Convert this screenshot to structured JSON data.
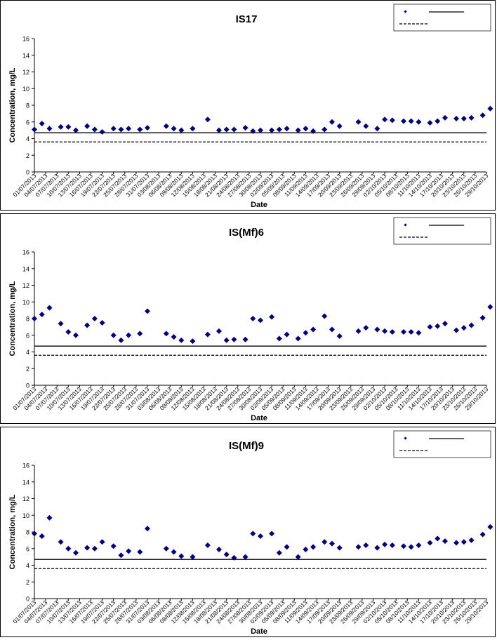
{
  "chart_data": [
    {
      "type": "scatter",
      "title": "IS17",
      "xlabel": "Date",
      "ylabel": "Concentration, mg/L",
      "ylim": [
        0,
        16
      ],
      "yticks": [
        "0",
        "2",
        "4",
        "6",
        "8",
        "10",
        "12",
        "14",
        "16"
      ],
      "x_tick_labels": [
        "01/07/2013",
        "04/07/2013",
        "07/07/2013",
        "10/07/2013",
        "13/07/2013",
        "16/07/2013",
        "19/07/2013",
        "22/07/2013",
        "25/07/2013",
        "28/07/2013",
        "31/07/2013",
        "03/08/2013",
        "06/08/2013",
        "09/08/2013",
        "12/08/2013",
        "15/08/2013",
        "18/08/2013",
        "21/08/2013",
        "24/08/2013",
        "27/08/2013",
        "30/08/2013",
        "02/09/2013",
        "05/09/2013",
        "08/09/2013",
        "11/09/2013",
        "14/09/2013",
        "17/09/2013",
        "20/09/2013",
        "23/09/2013",
        "26/09/2013",
        "29/09/2013",
        "02/10/2013",
        "05/10/2013",
        "08/10/2013",
        "11/10/2013",
        "14/10/2013",
        "17/10/2013",
        "20/10/2013",
        "23/10/2013",
        "26/10/2013",
        "29/10/2013"
      ],
      "grid": false,
      "legend": "top-right",
      "marker_color": "#000080",
      "reference_lines": [
        {
          "style": "solid",
          "y": 4.7
        },
        {
          "style": "dashed",
          "y": 3.6
        }
      ],
      "points": [
        {
          "x": "01/07/2013",
          "y": 5.1
        },
        {
          "x": "03/07/2013",
          "y": 5.8
        },
        {
          "x": "05/07/2013",
          "y": 5.2
        },
        {
          "x": "08/07/2013",
          "y": 5.4
        },
        {
          "x": "10/07/2013",
          "y": 5.4
        },
        {
          "x": "12/07/2013",
          "y": 5.0
        },
        {
          "x": "15/07/2013",
          "y": 5.5
        },
        {
          "x": "17/07/2013",
          "y": 5.1
        },
        {
          "x": "19/07/2013",
          "y": 4.8
        },
        {
          "x": "22/07/2013",
          "y": 5.2
        },
        {
          "x": "24/07/2013",
          "y": 5.1
        },
        {
          "x": "26/07/2013",
          "y": 5.2
        },
        {
          "x": "29/07/2013",
          "y": 5.1
        },
        {
          "x": "31/07/2013",
          "y": 5.3
        },
        {
          "x": "05/08/2013",
          "y": 5.5
        },
        {
          "x": "07/08/2013",
          "y": 5.2
        },
        {
          "x": "09/08/2013",
          "y": 5.0
        },
        {
          "x": "12/08/2013",
          "y": 5.2
        },
        {
          "x": "16/08/2013",
          "y": 6.3
        },
        {
          "x": "19/08/2013",
          "y": 5.0
        },
        {
          "x": "21/08/2013",
          "y": 5.1
        },
        {
          "x": "23/08/2013",
          "y": 5.1
        },
        {
          "x": "26/08/2013",
          "y": 5.3
        },
        {
          "x": "28/08/2013",
          "y": 4.9
        },
        {
          "x": "30/08/2013",
          "y": 5.0
        },
        {
          "x": "02/09/2013",
          "y": 5.0
        },
        {
          "x": "04/09/2013",
          "y": 5.1
        },
        {
          "x": "06/09/2013",
          "y": 5.2
        },
        {
          "x": "09/09/2013",
          "y": 5.0
        },
        {
          "x": "11/09/2013",
          "y": 5.2
        },
        {
          "x": "13/09/2013",
          "y": 4.9
        },
        {
          "x": "16/09/2013",
          "y": 5.1
        },
        {
          "x": "18/09/2013",
          "y": 6.0
        },
        {
          "x": "20/09/2013",
          "y": 5.5
        },
        {
          "x": "25/09/2013",
          "y": 6.0
        },
        {
          "x": "27/09/2013",
          "y": 5.5
        },
        {
          "x": "30/09/2013",
          "y": 5.2
        },
        {
          "x": "02/10/2013",
          "y": 6.3
        },
        {
          "x": "04/10/2013",
          "y": 6.2
        },
        {
          "x": "07/10/2013",
          "y": 6.1
        },
        {
          "x": "09/10/2013",
          "y": 6.1
        },
        {
          "x": "11/10/2013",
          "y": 6.0
        },
        {
          "x": "14/10/2013",
          "y": 5.9
        },
        {
          "x": "16/10/2013",
          "y": 6.1
        },
        {
          "x": "18/10/2013",
          "y": 6.5
        },
        {
          "x": "21/10/2013",
          "y": 6.4
        },
        {
          "x": "23/10/2013",
          "y": 6.4
        },
        {
          "x": "25/10/2013",
          "y": 6.5
        },
        {
          "x": "28/10/2013",
          "y": 6.8
        },
        {
          "x": "30/10/2013",
          "y": 7.6
        }
      ]
    },
    {
      "type": "scatter",
      "title": "IS(Mf)6",
      "xlabel": "Date",
      "ylabel": "Concentration, mg/L",
      "ylim": [
        0,
        16
      ],
      "yticks": [
        "0",
        "2",
        "4",
        "6",
        "8",
        "10",
        "12",
        "14",
        "16"
      ],
      "x_tick_labels": [
        "01/07/2013",
        "04/07/2013",
        "07/07/2013",
        "10/07/2013",
        "13/07/2013",
        "16/07/2013",
        "19/07/2013",
        "22/07/2013",
        "25/07/2013",
        "28/07/2013",
        "31/07/2013",
        "03/08/2013",
        "06/08/2013",
        "09/08/2013",
        "12/08/2013",
        "15/08/2013",
        "18/08/2013",
        "21/08/2013",
        "24/08/2013",
        "27/08/2013",
        "30/08/2013",
        "02/09/2013",
        "05/09/2013",
        "08/09/2013",
        "11/09/2013",
        "14/09/2013",
        "17/09/2013",
        "20/09/2013",
        "23/09/2013",
        "26/09/2013",
        "29/09/2013",
        "02/10/2013",
        "05/10/2013",
        "08/10/2013",
        "11/10/2013",
        "14/10/2013",
        "17/10/2013",
        "20/10/2013",
        "23/10/2013",
        "26/10/2013",
        "29/10/2013"
      ],
      "grid": false,
      "legend": "top-right",
      "marker_color": "#000080",
      "reference_lines": [
        {
          "style": "solid",
          "y": 4.7
        },
        {
          "style": "dashed",
          "y": 3.6
        }
      ],
      "points": [
        {
          "x": "01/07/2013",
          "y": 8.0
        },
        {
          "x": "03/07/2013",
          "y": 8.5
        },
        {
          "x": "05/07/2013",
          "y": 9.3
        },
        {
          "x": "08/07/2013",
          "y": 7.4
        },
        {
          "x": "10/07/2013",
          "y": 6.4
        },
        {
          "x": "12/07/2013",
          "y": 6.0
        },
        {
          "x": "15/07/2013",
          "y": 7.2
        },
        {
          "x": "17/07/2013",
          "y": 8.0
        },
        {
          "x": "19/07/2013",
          "y": 7.5
        },
        {
          "x": "22/07/2013",
          "y": 6.0
        },
        {
          "x": "24/07/2013",
          "y": 5.4
        },
        {
          "x": "26/07/2013",
          "y": 6.0
        },
        {
          "x": "29/07/2013",
          "y": 6.2
        },
        {
          "x": "31/07/2013",
          "y": 8.9
        },
        {
          "x": "05/08/2013",
          "y": 6.2
        },
        {
          "x": "07/08/2013",
          "y": 5.8
        },
        {
          "x": "09/08/2013",
          "y": 5.4
        },
        {
          "x": "12/08/2013",
          "y": 5.3
        },
        {
          "x": "16/08/2013",
          "y": 6.1
        },
        {
          "x": "19/08/2013",
          "y": 6.5
        },
        {
          "x": "21/08/2013",
          "y": 5.4
        },
        {
          "x": "23/08/2013",
          "y": 5.5
        },
        {
          "x": "26/08/2013",
          "y": 5.5
        },
        {
          "x": "28/08/2013",
          "y": 8.0
        },
        {
          "x": "30/08/2013",
          "y": 7.8
        },
        {
          "x": "02/09/2013",
          "y": 8.2
        },
        {
          "x": "04/09/2013",
          "y": 5.6
        },
        {
          "x": "06/09/2013",
          "y": 6.1
        },
        {
          "x": "09/09/2013",
          "y": 5.6
        },
        {
          "x": "11/09/2013",
          "y": 6.3
        },
        {
          "x": "13/09/2013",
          "y": 6.7
        },
        {
          "x": "16/09/2013",
          "y": 8.3
        },
        {
          "x": "18/09/2013",
          "y": 6.7
        },
        {
          "x": "20/09/2013",
          "y": 5.9
        },
        {
          "x": "25/09/2013",
          "y": 6.5
        },
        {
          "x": "27/09/2013",
          "y": 6.9
        },
        {
          "x": "30/09/2013",
          "y": 6.7
        },
        {
          "x": "02/10/2013",
          "y": 6.5
        },
        {
          "x": "04/10/2013",
          "y": 6.4
        },
        {
          "x": "07/10/2013",
          "y": 6.4
        },
        {
          "x": "09/10/2013",
          "y": 6.4
        },
        {
          "x": "11/10/2013",
          "y": 6.3
        },
        {
          "x": "14/10/2013",
          "y": 7.0
        },
        {
          "x": "16/10/2013",
          "y": 7.1
        },
        {
          "x": "18/10/2013",
          "y": 7.4
        },
        {
          "x": "21/10/2013",
          "y": 6.6
        },
        {
          "x": "23/10/2013",
          "y": 6.9
        },
        {
          "x": "25/10/2013",
          "y": 7.2
        },
        {
          "x": "28/10/2013",
          "y": 8.1
        },
        {
          "x": "30/10/2013",
          "y": 9.4
        }
      ]
    },
    {
      "type": "scatter",
      "title": "IS(Mf)9",
      "xlabel": "Date",
      "ylabel": "Concentration, mg/L",
      "ylim": [
        0,
        16
      ],
      "yticks": [
        "0",
        "2",
        "4",
        "6",
        "8",
        "10",
        "12",
        "14",
        "16"
      ],
      "x_tick_labels": [
        "01/07/2013",
        "04/07/2013",
        "07/07/2013",
        "10/07/2013",
        "13/07/2013",
        "16/07/2013",
        "19/07/2013",
        "22/07/2013",
        "25/07/2013",
        "28/07/2013",
        "31/07/2013",
        "03/08/2013",
        "06/08/2013",
        "09/08/2013",
        "12/08/2013",
        "15/08/2013",
        "18/08/2013",
        "21/08/2013",
        "24/08/2013",
        "27/08/2013",
        "30/08/2013",
        "02/09/2013",
        "05/09/2013",
        "08/09/2013",
        "11/09/2013",
        "14/09/2013",
        "17/09/2013",
        "20/09/2013",
        "23/09/2013",
        "26/09/2013",
        "29/09/2013",
        "02/10/2013",
        "05/10/2013",
        "08/10/2013",
        "11/10/2013",
        "14/10/2013",
        "17/10/2013",
        "20/10/2013",
        "23/10/2013",
        "26/10/2013",
        "29/10/2013"
      ],
      "grid": false,
      "legend": "top-right",
      "marker_color": "#000080",
      "reference_lines": [
        {
          "style": "solid",
          "y": 4.7
        },
        {
          "style": "dashed",
          "y": 3.6
        }
      ],
      "points": [
        {
          "x": "01/07/2013",
          "y": 7.8
        },
        {
          "x": "03/07/2013",
          "y": 7.5
        },
        {
          "x": "05/07/2013",
          "y": 9.7
        },
        {
          "x": "08/07/2013",
          "y": 6.8
        },
        {
          "x": "10/07/2013",
          "y": 6.0
        },
        {
          "x": "12/07/2013",
          "y": 5.5
        },
        {
          "x": "15/07/2013",
          "y": 6.1
        },
        {
          "x": "17/07/2013",
          "y": 6.0
        },
        {
          "x": "19/07/2013",
          "y": 6.8
        },
        {
          "x": "22/07/2013",
          "y": 6.3
        },
        {
          "x": "24/07/2013",
          "y": 5.2
        },
        {
          "x": "26/07/2013",
          "y": 5.7
        },
        {
          "x": "29/07/2013",
          "y": 5.6
        },
        {
          "x": "31/07/2013",
          "y": 8.4
        },
        {
          "x": "05/08/2013",
          "y": 6.0
        },
        {
          "x": "07/08/2013",
          "y": 5.6
        },
        {
          "x": "09/08/2013",
          "y": 5.1
        },
        {
          "x": "12/08/2013",
          "y": 5.0
        },
        {
          "x": "16/08/2013",
          "y": 6.4
        },
        {
          "x": "19/08/2013",
          "y": 5.9
        },
        {
          "x": "21/08/2013",
          "y": 5.3
        },
        {
          "x": "23/08/2013",
          "y": 4.9
        },
        {
          "x": "26/08/2013",
          "y": 5.0
        },
        {
          "x": "28/08/2013",
          "y": 7.8
        },
        {
          "x": "30/08/2013",
          "y": 7.5
        },
        {
          "x": "02/09/2013",
          "y": 7.8
        },
        {
          "x": "04/09/2013",
          "y": 5.5
        },
        {
          "x": "06/09/2013",
          "y": 6.2
        },
        {
          "x": "09/09/2013",
          "y": 5.0
        },
        {
          "x": "11/09/2013",
          "y": 5.9
        },
        {
          "x": "13/09/2013",
          "y": 6.2
        },
        {
          "x": "16/09/2013",
          "y": 6.8
        },
        {
          "x": "18/09/2013",
          "y": 6.6
        },
        {
          "x": "20/09/2013",
          "y": 6.1
        },
        {
          "x": "25/09/2013",
          "y": 6.2
        },
        {
          "x": "27/09/2013",
          "y": 6.4
        },
        {
          "x": "30/09/2013",
          "y": 6.1
        },
        {
          "x": "02/10/2013",
          "y": 6.5
        },
        {
          "x": "04/10/2013",
          "y": 6.4
        },
        {
          "x": "07/10/2013",
          "y": 6.3
        },
        {
          "x": "09/10/2013",
          "y": 6.2
        },
        {
          "x": "11/10/2013",
          "y": 6.4
        },
        {
          "x": "14/10/2013",
          "y": 6.7
        },
        {
          "x": "16/10/2013",
          "y": 7.2
        },
        {
          "x": "18/10/2013",
          "y": 6.9
        },
        {
          "x": "21/10/2013",
          "y": 6.7
        },
        {
          "x": "23/10/2013",
          "y": 6.8
        },
        {
          "x": "25/10/2013",
          "y": 7.0
        },
        {
          "x": "28/10/2013",
          "y": 7.7
        },
        {
          "x": "30/10/2013",
          "y": 8.6
        }
      ]
    }
  ]
}
